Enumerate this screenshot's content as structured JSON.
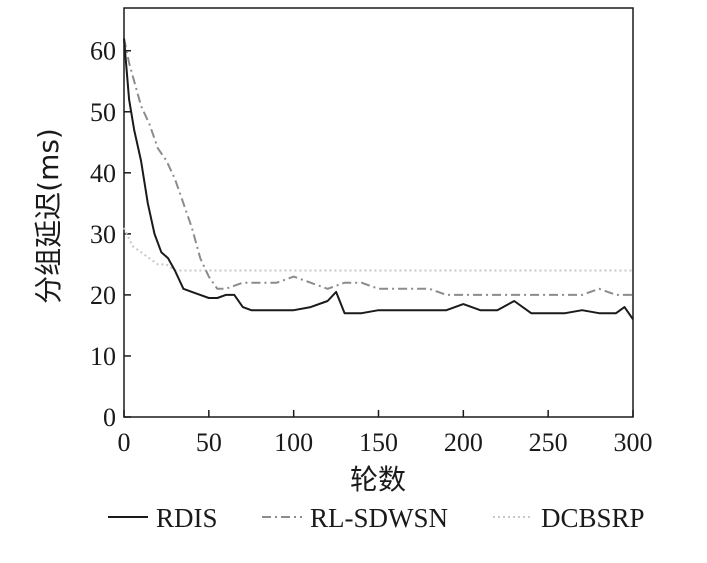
{
  "chart_data": {
    "type": "line",
    "title": "",
    "xlabel": "轮数",
    "ylabel": "分组延迟(ms)",
    "xlim": [
      0,
      300
    ],
    "ylim": [
      0,
      67
    ],
    "xticks": [
      0,
      50,
      100,
      150,
      200,
      250,
      300
    ],
    "yticks": [
      0,
      10,
      20,
      30,
      40,
      50,
      60
    ],
    "grid": false,
    "legend_placement": "bottom",
    "series": [
      {
        "name": "RDIS",
        "color": "#1a1a1a",
        "style": "solid",
        "x": [
          0,
          3,
          6,
          10,
          14,
          18,
          22,
          26,
          30,
          35,
          40,
          45,
          50,
          55,
          60,
          65,
          70,
          75,
          80,
          90,
          100,
          110,
          120,
          125,
          130,
          140,
          150,
          160,
          170,
          180,
          190,
          200,
          210,
          220,
          230,
          240,
          250,
          260,
          270,
          280,
          290,
          295,
          300
        ],
        "y": [
          62,
          52,
          47,
          42,
          35,
          30,
          27,
          26,
          24,
          21,
          20.5,
          20,
          19.5,
          19.5,
          20,
          20,
          18,
          17.5,
          17.5,
          17.5,
          17.5,
          18,
          19,
          20.5,
          17,
          17,
          17.5,
          17.5,
          17.5,
          17.5,
          17.5,
          18.5,
          17.5,
          17.5,
          19,
          17,
          17,
          17,
          17.5,
          17,
          17,
          18,
          16
        ]
      },
      {
        "name": "RL-SDWSN",
        "color": "#8c8c8c",
        "style": "dashdot",
        "x": [
          0,
          3,
          6,
          10,
          15,
          20,
          25,
          30,
          35,
          40,
          45,
          50,
          55,
          60,
          70,
          80,
          90,
          100,
          110,
          120,
          130,
          140,
          150,
          160,
          170,
          180,
          190,
          200,
          210,
          220,
          230,
          240,
          250,
          260,
          270,
          280,
          290,
          300
        ],
        "y": [
          62,
          58,
          55,
          51,
          48,
          44,
          42,
          39,
          35,
          31,
          26,
          23,
          21,
          21,
          22,
          22,
          22,
          23,
          22,
          21,
          22,
          22,
          21,
          21,
          21,
          21,
          20,
          20,
          20,
          20,
          20,
          20,
          20,
          20,
          20,
          21,
          20,
          20
        ]
      },
      {
        "name": "DCBSRP",
        "color": "#c8c8c8",
        "style": "dotted",
        "x": [
          0,
          5,
          10,
          15,
          20,
          25,
          30,
          40,
          50,
          60,
          70,
          80,
          90,
          100,
          110,
          120,
          130,
          140,
          150,
          160,
          170,
          180,
          190,
          200,
          210,
          220,
          230,
          240,
          250,
          260,
          270,
          280,
          290,
          300
        ],
        "y": [
          31,
          28,
          27,
          26,
          25,
          25,
          24,
          24,
          24,
          24,
          24,
          24,
          24,
          24,
          24,
          24,
          24,
          24,
          24,
          24,
          24,
          24,
          24,
          24,
          24,
          24,
          24,
          24,
          24,
          24,
          24,
          24,
          24,
          24
        ]
      }
    ]
  }
}
